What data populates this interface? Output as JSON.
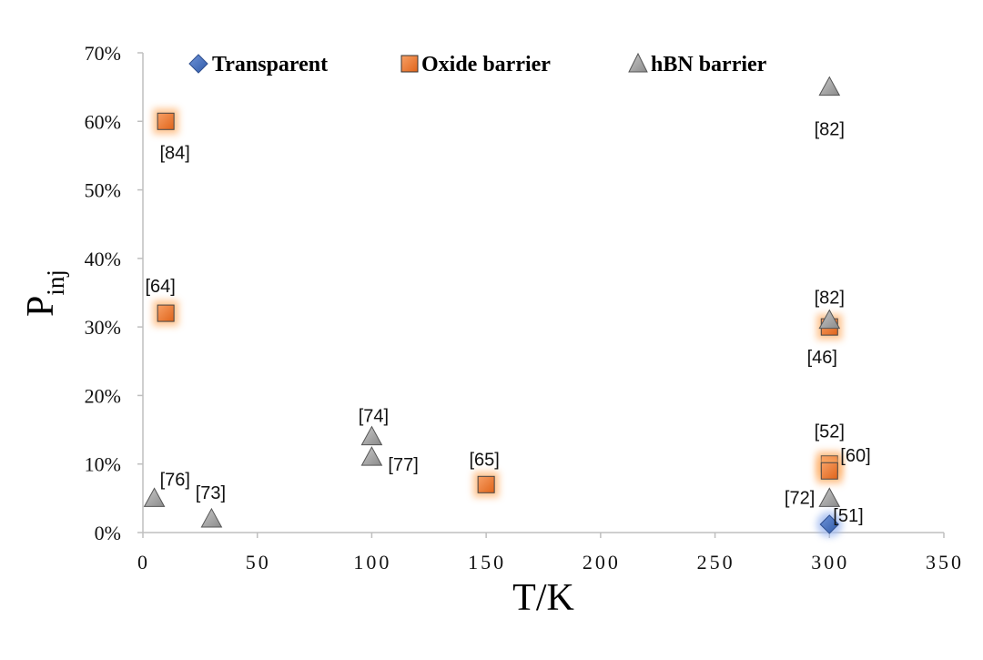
{
  "chart_data": {
    "type": "scatter",
    "xlabel": "T/K",
    "ylabel": "P",
    "ylabel_sub": "inj",
    "xlim": [
      0,
      350
    ],
    "ylim": [
      0,
      0.7
    ],
    "x_ticks": [
      "0",
      "50",
      "100",
      "150",
      "200",
      "250",
      "300",
      "350"
    ],
    "y_ticks": [
      "0%",
      "10%",
      "20%",
      "30%",
      "40%",
      "50%",
      "60%",
      "70%"
    ],
    "grid": false,
    "legend_position": "top",
    "series": [
      {
        "name": "Transparent",
        "marker": "diamond",
        "color": "#4472C4",
        "points": [
          {
            "x": 300,
            "y": 0.012,
            "label": "[51]"
          }
        ]
      },
      {
        "name": "Oxide barrier",
        "marker": "square",
        "color": "#ED7D31",
        "points": [
          {
            "x": 10,
            "y": 0.6,
            "label": "[84]"
          },
          {
            "x": 10,
            "y": 0.32,
            "label": "[64]"
          },
          {
            "x": 150,
            "y": 0.07,
            "label": "[65]"
          },
          {
            "x": 300,
            "y": 0.3,
            "label": "[46]"
          },
          {
            "x": 300,
            "y": 0.1,
            "label": "[52]"
          },
          {
            "x": 300,
            "y": 0.09,
            "label": "[60]"
          }
        ]
      },
      {
        "name": "hBN barrier",
        "marker": "triangle",
        "color": "#A5A5A5",
        "points": [
          {
            "x": 300,
            "y": 0.65,
            "label": "[82]"
          },
          {
            "x": 300,
            "y": 0.31,
            "label": "[82]"
          },
          {
            "x": 100,
            "y": 0.14,
            "label": "[74]"
          },
          {
            "x": 100,
            "y": 0.11,
            "label": "[77]"
          },
          {
            "x": 5,
            "y": 0.05,
            "label": "[76]"
          },
          {
            "x": 30,
            "y": 0.02,
            "label": "[73]"
          },
          {
            "x": 300,
            "y": 0.05,
            "label": "[72]"
          }
        ]
      }
    ]
  }
}
